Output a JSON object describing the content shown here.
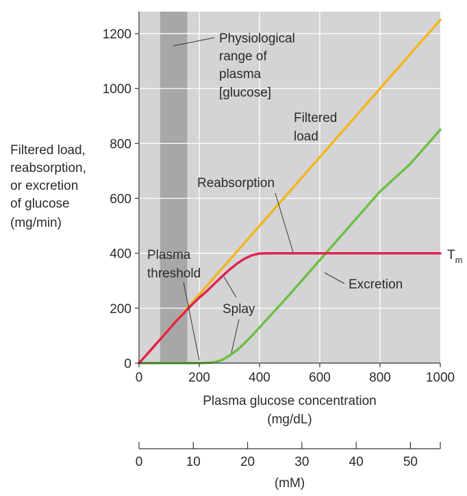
{
  "chart_data": {
    "type": "line",
    "title": "",
    "xlabel_line1": "Plasma glucose concentration",
    "xlabel_line2": "(mg/dL)",
    "ylabel_lines": [
      "Filtered load,",
      "reabsorption,",
      "or excretion",
      "of glucose",
      "(mg/min)"
    ],
    "xlim": [
      0,
      1000
    ],
    "ylim": [
      0,
      1280
    ],
    "x_ticks": [
      0,
      200,
      400,
      600,
      800,
      1000
    ],
    "y_ticks": [
      0,
      200,
      400,
      600,
      800,
      1000,
      1200
    ],
    "grid": true,
    "secondary_axis": {
      "label": "(mM)",
      "ticks": [
        0,
        10,
        20,
        30,
        40,
        50
      ],
      "range": [
        0,
        55.5
      ]
    },
    "shaded_band": {
      "x_range": [
        70,
        160
      ],
      "label_lines": [
        "Physiological",
        "range of",
        "plasma",
        "[glucose]"
      ]
    },
    "series": [
      {
        "name": "Filtered load",
        "color": "#f2b61e",
        "x": [
          0,
          1000
        ],
        "y": [
          0,
          1250
        ]
      },
      {
        "name": "Reabsorption",
        "color": "#e0234f",
        "x": [
          0,
          25,
          75,
          125,
          175,
          200,
          225,
          250,
          275,
          300,
          325,
          350,
          375,
          400,
          425,
          1000
        ],
        "y": [
          0,
          30,
          92,
          155,
          212,
          238,
          262,
          289,
          315,
          340,
          362,
          380,
          393,
          399,
          400,
          400
        ]
      },
      {
        "name": "Excretion",
        "color": "#6dbf45",
        "x": [
          0,
          200,
          225,
          250,
          275,
          300,
          325,
          350,
          375,
          400,
          450,
          500,
          600,
          700,
          800,
          900,
          1000
        ],
        "y": [
          0,
          0,
          1,
          3,
          11,
          27,
          47,
          72,
          100,
          130,
          190,
          250,
          375,
          500,
          625,
          725,
          850
        ]
      }
    ],
    "annotations": {
      "filtered_load_lines": [
        "Filtered",
        "load"
      ],
      "reabsorption": "Reabsorption",
      "excretion": "Excretion",
      "plasma_threshold_lines": [
        "Plasma",
        "threshold"
      ],
      "splay": "Splay",
      "tm_main": "T",
      "tm_sub": "m"
    },
    "colors": {
      "plot_bg": "#d4d4d6",
      "band": "#a7a7a9",
      "grid": "#ffffff",
      "axis": "#333333"
    }
  }
}
